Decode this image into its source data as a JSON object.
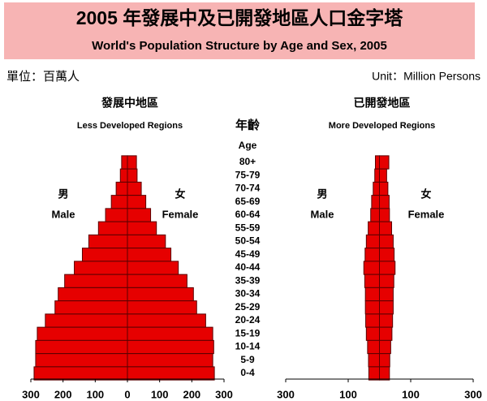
{
  "header": {
    "title": "2005 年發展中及已開發地區人口金字塔",
    "subtitle": "World's Population Structure by Age and Sex, 2005",
    "unit_zh": "單位：百萬人",
    "unit_en": "Unit：Million Persons"
  },
  "age_title": "年齡",
  "age_subtitle": "Age",
  "chart_data": [
    {
      "type": "pyramid",
      "title": "發展中地區",
      "subtitle": "Less Developed Regions",
      "categories": [
        "80+",
        "75-79",
        "70-74",
        "65-69",
        "60-64",
        "55-59",
        "50-54",
        "45-49",
        "40-44",
        "35-39",
        "30-34",
        "25-29",
        "20-24",
        "15-19",
        "10-14",
        "5-9",
        "0-4"
      ],
      "series": [
        {
          "name": "Male",
          "name_zh": "男",
          "color": "#e60000",
          "values": [
            18,
            22,
            35,
            50,
            68,
            90,
            120,
            140,
            165,
            195,
            215,
            225,
            255,
            280,
            285,
            285,
            290
          ]
        },
        {
          "name": "Female",
          "name_zh": "女",
          "color": "#e60000",
          "values": [
            28,
            30,
            43,
            57,
            72,
            90,
            118,
            135,
            158,
            185,
            205,
            215,
            243,
            265,
            268,
            265,
            270
          ]
        }
      ],
      "xlim": [
        -300,
        300
      ],
      "xticks": [
        {
          "value": -300,
          "label": "300"
        },
        {
          "value": -200,
          "label": "200"
        },
        {
          "value": -100,
          "label": "100"
        },
        0,
        100,
        200,
        300
      ]
    },
    {
      "type": "pyramid",
      "title": "已開發地區",
      "subtitle": "More Developed Regions",
      "series": [
        {
          "name": "Male",
          "name_zh": "男",
          "color": "#e60000",
          "values": [
            13,
            15,
            20,
            25,
            28,
            36,
            42,
            46,
            50,
            47,
            45,
            45,
            44,
            42,
            38,
            35,
            34
          ]
        },
        {
          "name": "Female",
          "name_zh": "女",
          "color": "#e60000",
          "values": [
            30,
            23,
            27,
            31,
            32,
            39,
            44,
            47,
            50,
            46,
            44,
            44,
            42,
            40,
            36,
            33,
            32
          ]
        }
      ],
      "xlim": [
        -300,
        300
      ],
      "xticks": [
        {
          "value": -300,
          "label": "300"
        },
        {
          "value": -100,
          "label": "100"
        },
        100,
        300
      ]
    }
  ]
}
